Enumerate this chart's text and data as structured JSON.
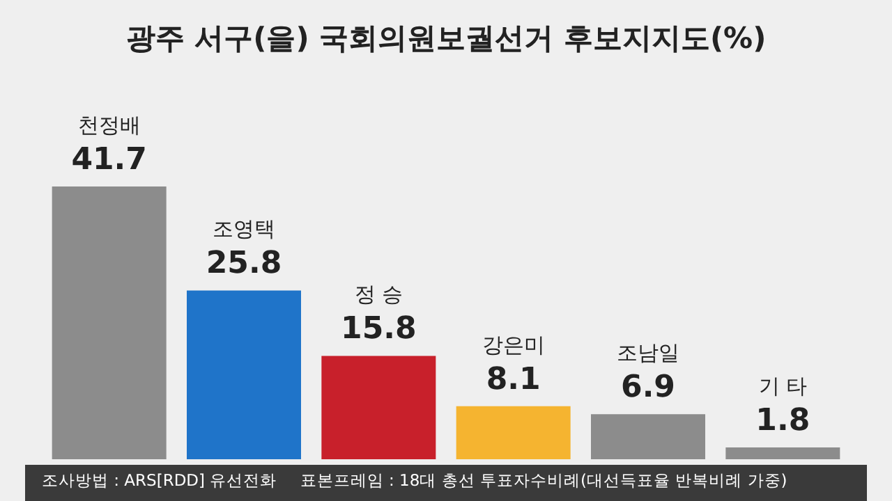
{
  "chart_data": {
    "type": "bar",
    "title": "광주 서구(을) 국회의원보궐선거 후보지지도(%)",
    "categories": [
      "천정배",
      "조영택",
      "정 승",
      "강은미",
      "조남일",
      "기 타"
    ],
    "values": [
      41.7,
      25.8,
      15.8,
      8.1,
      6.9,
      1.8
    ],
    "colors": [
      "#8c8c8c",
      "#1f74c9",
      "#c8202b",
      "#f5b430",
      "#8c8c8c",
      "#8c8c8c"
    ],
    "data_labels": true,
    "annotations": [
      "조사방법 : ARS[RDD] 유선전화",
      "표본프레임 : 18대 총선 투표자수비례(대선득표율 반복비례 가중)"
    ]
  }
}
